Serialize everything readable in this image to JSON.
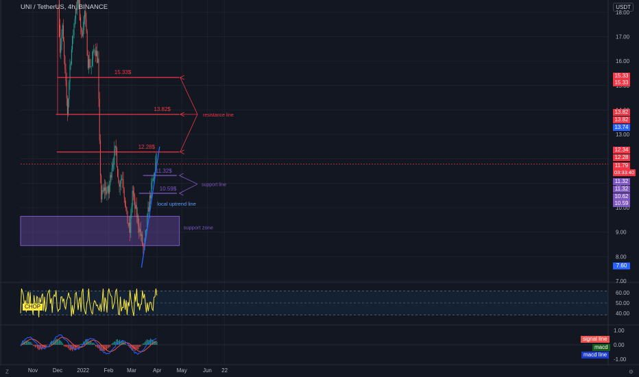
{
  "header": {
    "symbol": "UNI / TetherUS, 4h, BINANCE",
    "quote_currency": "USDT"
  },
  "colors": {
    "background": "#131722",
    "resistance": "#f23645",
    "support": "#7e57c2",
    "uptrend": "#2962ff",
    "candle_up": "#26a69a",
    "candle_down": "#ef5350",
    "chop": "#ffeb3b",
    "macd_line": "#2962ff",
    "signal_line": "#ef5350",
    "hist_pos": "#26a69a",
    "hist_neg": "#ef5350"
  },
  "chart_data": [
    {
      "type": "candlestick",
      "title": "",
      "ylim": [
        7.0,
        18.5
      ],
      "y_ticks": [
        "18.00",
        "17.00",
        "16.00",
        "15.00",
        "14.00",
        "13.00",
        "12.00",
        "11.00",
        "10.00",
        "9.00",
        "8.00",
        "7.00"
      ],
      "x_ticks": [
        "Nov",
        "Dec",
        "2022",
        "Feb",
        "Mar",
        "Apr",
        "May",
        "Jun",
        "22"
      ],
      "current_price": "11.79",
      "countdown": "03:33:40",
      "price_path": [
        [
          "2021-12-02",
          19.0
        ],
        [
          "2021-12-04",
          16.5
        ],
        [
          "2021-12-07",
          17.3
        ],
        [
          "2021-12-10",
          15.5
        ],
        [
          "2021-12-13",
          13.9
        ],
        [
          "2021-12-16",
          15.8
        ],
        [
          "2021-12-19",
          16.8
        ],
        [
          "2021-12-23",
          18.2
        ],
        [
          "2021-12-27",
          18.4
        ],
        [
          "2021-12-30",
          17.0
        ],
        [
          "2022-01-03",
          18.0
        ],
        [
          "2022-01-07",
          16.0
        ],
        [
          "2022-01-11",
          15.8
        ],
        [
          "2022-01-15",
          16.6
        ],
        [
          "2022-01-19",
          16.0
        ],
        [
          "2022-01-21",
          12.5
        ],
        [
          "2022-01-23",
          10.4
        ],
        [
          "2022-01-27",
          10.8
        ],
        [
          "2022-02-01",
          10.6
        ],
        [
          "2022-02-05",
          11.8
        ],
        [
          "2022-02-10",
          12.4
        ],
        [
          "2022-02-13",
          11.0
        ],
        [
          "2022-02-18",
          11.3
        ],
        [
          "2022-02-23",
          9.6
        ],
        [
          "2022-02-27",
          9.0
        ],
        [
          "2022-03-02",
          10.7
        ],
        [
          "2022-03-05",
          10.0
        ],
        [
          "2022-03-09",
          9.4
        ],
        [
          "2022-03-13",
          8.7
        ],
        [
          "2022-03-16",
          8.2
        ],
        [
          "2022-03-20",
          9.5
        ],
        [
          "2022-03-24",
          10.6
        ],
        [
          "2022-03-28",
          11.3
        ],
        [
          "2022-03-31",
          12.0
        ]
      ],
      "annotations": {
        "resistance_levels": [
          {
            "label": "15.33$",
            "price": 15.33
          },
          {
            "label": "13.82$",
            "price": 13.82
          },
          {
            "label": "12.28$",
            "price": 12.28
          }
        ],
        "support_levels": [
          {
            "label": "11.32$",
            "price": 11.32
          },
          {
            "label": "10.59$",
            "price": 10.59
          }
        ],
        "resistance_text": "resistance line",
        "support_text": "support line",
        "support_zone_text": "support zone",
        "support_zone": [
          8.45,
          9.65
        ],
        "uptrend_text": "local uptrend line",
        "uptrend": [
          [
            "2022-03-13",
            7.55
          ],
          [
            "2022-04-04",
            12.5
          ]
        ]
      },
      "price_badges": [
        {
          "text": "15.33",
          "price": 15.4,
          "color": "#f23645"
        },
        {
          "text": "15.33",
          "price": 15.1,
          "color": "#f23645"
        },
        {
          "text": "13.82",
          "price": 13.89,
          "color": "#f23645"
        },
        {
          "text": "13.82",
          "price": 13.59,
          "color": "#f23645"
        },
        {
          "text": "13.74",
          "price": 13.29,
          "color": "#2962ff"
        },
        {
          "text": "12.34",
          "price": 12.35,
          "color": "#f23645"
        },
        {
          "text": "12.28",
          "price": 12.05,
          "color": "#f23645"
        },
        {
          "text": "11.79",
          "price": 11.71,
          "color": "#f23645"
        },
        {
          "text": "11.32",
          "price": 11.06,
          "color": "#7e57c2"
        },
        {
          "text": "11.32",
          "price": 10.76,
          "color": "#7e57c2"
        },
        {
          "text": "10.62",
          "price": 10.46,
          "color": "#7e57c2"
        },
        {
          "text": "10.59",
          "price": 10.16,
          "color": "#7e57c2"
        },
        {
          "text": "7.60",
          "price": 7.62,
          "color": "#2962ff"
        }
      ]
    },
    {
      "type": "line",
      "series": [
        {
          "name": "CHOP"
        }
      ],
      "ylim": [
        30,
        68
      ],
      "y_ticks": [
        "60.00",
        "50.00",
        "40.00"
      ],
      "levels": [
        61.8,
        50,
        38.2
      ]
    },
    {
      "type": "line",
      "series": [
        {
          "name": "signal line"
        },
        {
          "name": "macd"
        },
        {
          "name": "macd line"
        }
      ],
      "ylim": [
        -1.3,
        1.3
      ],
      "y_ticks": [
        "1.00",
        "0.00",
        "-1.00"
      ]
    }
  ]
}
